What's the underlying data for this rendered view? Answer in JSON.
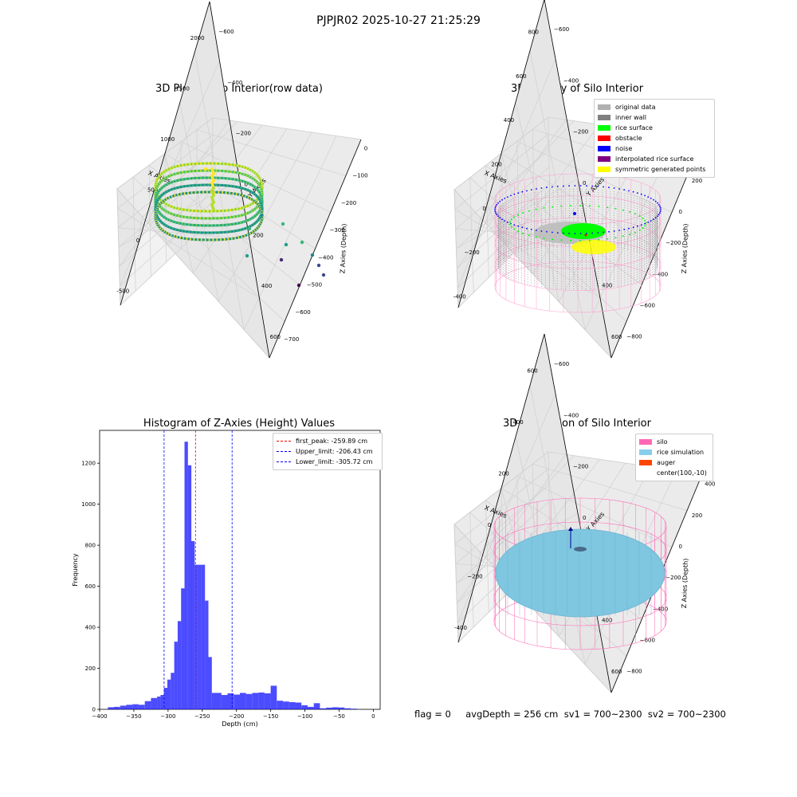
{
  "suptitle": "PJPJR02 2025-10-27 21:25:29",
  "panels": {
    "raw": {
      "title": "3D Plot of Silo Interior(row data)",
      "xlabel": "X Axies",
      "ylabel": "Y Axies",
      "zlabel": "Z Axies (Depth)",
      "xticks": [
        "-500",
        "0",
        "500",
        "1000",
        "1500",
        "2000"
      ],
      "yticks": [
        "600",
        "400",
        "200",
        "0",
        "−200",
        "−400",
        "−600"
      ],
      "zticks": [
        "0",
        "−100",
        "−200",
        "−300",
        "−400",
        "−500",
        "−600",
        "−700"
      ]
    },
    "classify": {
      "title": "3D classify of Silo Interior",
      "xlabel": "X Axies",
      "ylabel": "Y Axies",
      "zlabel": "Z Axies (Depth)",
      "xticks": [
        "-400",
        "−200",
        "0",
        "200",
        "400",
        "600",
        "800"
      ],
      "yticks": [
        "600",
        "400",
        "200",
        "0",
        "−200",
        "−400",
        "−600"
      ],
      "zticks": [
        "400",
        "200",
        "0",
        "−200",
        "−400",
        "−600",
        "−800"
      ],
      "legend": [
        {
          "label": "original data",
          "color": "#b0b0b0"
        },
        {
          "label": "inner wall",
          "color": "#808080"
        },
        {
          "label": "rice surface",
          "color": "#00ff00"
        },
        {
          "label": "obstacle",
          "color": "#ff0000"
        },
        {
          "label": "noise",
          "color": "#0000ff"
        },
        {
          "label": "interpolated rice surface",
          "color": "#800080"
        },
        {
          "label": "symmetric generated points",
          "color": "#ffff00"
        }
      ]
    },
    "simulation": {
      "title": "3D simulation of Silo Interior",
      "xlabel": "X Axies",
      "ylabel": "Y Axies",
      "zlabel": "Z Axies (Depth)",
      "xticks": [
        "-400",
        "−200",
        "0",
        "200",
        "400",
        "600"
      ],
      "yticks": [
        "600",
        "400",
        "200",
        "0",
        "−200",
        "−400",
        "−600"
      ],
      "zticks": [
        "400",
        "200",
        "0",
        "−200",
        "−400",
        "−600",
        "−800"
      ],
      "legend": [
        {
          "label": "silo",
          "color": "#ff69b4"
        },
        {
          "label": "rice simulation",
          "color": "#87ceeb"
        },
        {
          "label": "auger",
          "color": "#ff4500"
        },
        {
          "label": "center(100,-10)",
          "color": ""
        }
      ]
    }
  },
  "footer": "flag = 0     avgDepth = 256 cm  sv1 = 700~2300  sv2 = 700~2300",
  "chart_data": {
    "type": "bar",
    "title": "Histogram of Z-Axies (Height) Values",
    "xlabel": "Depth (cm)",
    "ylabel": "Frequency",
    "xlim": [
      -400,
      10
    ],
    "ylim": [
      0,
      1360
    ],
    "xticks": [
      -400,
      -350,
      -300,
      -250,
      -200,
      -150,
      -100,
      -50,
      0
    ],
    "yticks": [
      0,
      200,
      400,
      600,
      800,
      1000,
      1200
    ],
    "bar_color": "#0000ff",
    "bins": [
      {
        "x0": -388,
        "x1": -379,
        "v": 10
      },
      {
        "x0": -379,
        "x1": -370,
        "v": 12
      },
      {
        "x0": -370,
        "x1": -361,
        "v": 18
      },
      {
        "x0": -361,
        "x1": -352,
        "v": 22
      },
      {
        "x0": -352,
        "x1": -343,
        "v": 25
      },
      {
        "x0": -343,
        "x1": -334,
        "v": 22
      },
      {
        "x0": -334,
        "x1": -325,
        "v": 40
      },
      {
        "x0": -325,
        "x1": -316,
        "v": 55
      },
      {
        "x0": -316,
        "x1": -311,
        "v": 62
      },
      {
        "x0": -311,
        "x1": -306,
        "v": 70
      },
      {
        "x0": -306,
        "x1": -301,
        "v": 105
      },
      {
        "x0": -301,
        "x1": -296,
        "v": 145
      },
      {
        "x0": -296,
        "x1": -291,
        "v": 178
      },
      {
        "x0": -291,
        "x1": -286,
        "v": 330
      },
      {
        "x0": -286,
        "x1": -281,
        "v": 430
      },
      {
        "x0": -281,
        "x1": -276,
        "v": 590
      },
      {
        "x0": -276,
        "x1": -271,
        "v": 1305
      },
      {
        "x0": -271,
        "x1": -266,
        "v": 1190
      },
      {
        "x0": -266,
        "x1": -261,
        "v": 820
      },
      {
        "x0": -261,
        "x1": -256,
        "v": 705
      },
      {
        "x0": -256,
        "x1": -251,
        "v": 705
      },
      {
        "x0": -251,
        "x1": -246,
        "v": 705
      },
      {
        "x0": -246,
        "x1": -241,
        "v": 530
      },
      {
        "x0": -241,
        "x1": -236,
        "v": 255
      },
      {
        "x0": -236,
        "x1": -222,
        "v": 80
      },
      {
        "x0": -222,
        "x1": -213,
        "v": 70
      },
      {
        "x0": -213,
        "x1": -204,
        "v": 78
      },
      {
        "x0": -204,
        "x1": -195,
        "v": 72
      },
      {
        "x0": -195,
        "x1": -186,
        "v": 80
      },
      {
        "x0": -186,
        "x1": -177,
        "v": 75
      },
      {
        "x0": -177,
        "x1": -168,
        "v": 80
      },
      {
        "x0": -168,
        "x1": -159,
        "v": 82
      },
      {
        "x0": -159,
        "x1": -150,
        "v": 78
      },
      {
        "x0": -150,
        "x1": -141,
        "v": 115
      },
      {
        "x0": -141,
        "x1": -132,
        "v": 42
      },
      {
        "x0": -132,
        "x1": -123,
        "v": 38
      },
      {
        "x0": -123,
        "x1": -114,
        "v": 35
      },
      {
        "x0": -114,
        "x1": -105,
        "v": 33
      },
      {
        "x0": -105,
        "x1": -96,
        "v": 20
      },
      {
        "x0": -96,
        "x1": -87,
        "v": 12
      },
      {
        "x0": -87,
        "x1": -78,
        "v": 30
      },
      {
        "x0": -78,
        "x1": -69,
        "v": 5
      },
      {
        "x0": -69,
        "x1": -60,
        "v": 8
      },
      {
        "x0": -60,
        "x1": -51,
        "v": 10
      },
      {
        "x0": -51,
        "x1": -42,
        "v": 9
      },
      {
        "x0": -42,
        "x1": -33,
        "v": 5
      },
      {
        "x0": -33,
        "x1": -24,
        "v": 3
      }
    ],
    "lines": [
      {
        "label": "first_peak: -259.89 cm",
        "x": -259.89,
        "color": "#ff0000"
      },
      {
        "label": "Upper_limit: -206.43 cm",
        "x": -206.43,
        "color": "#0000ff"
      },
      {
        "label": "Lower_limit: -305.72 cm",
        "x": -305.72,
        "color": "#0000ff"
      }
    ]
  }
}
